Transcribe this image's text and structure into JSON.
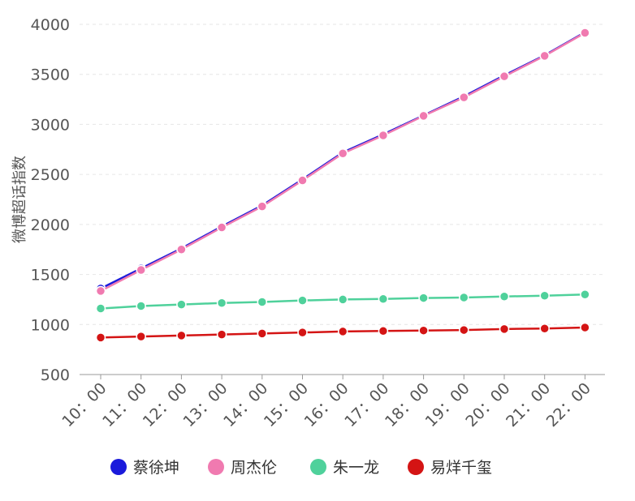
{
  "chart_data": {
    "type": "line",
    "title": "",
    "xlabel": "",
    "ylabel": "微博超话指数",
    "categories": [
      "10：00",
      "11：00",
      "12：00",
      "13：00",
      "14：00",
      "15：00",
      "16：00",
      "17：00",
      "18：00",
      "19：00",
      "20：00",
      "21：00",
      "22：00"
    ],
    "ylim": [
      500,
      4000
    ],
    "yticks": [
      500,
      1000,
      1500,
      2000,
      2500,
      3000,
      3500,
      4000
    ],
    "grid": true,
    "legend_position": "bottom",
    "series": [
      {
        "name": "蔡徐坤",
        "color": "#1a1adb",
        "values": [
          1360,
          1560,
          1760,
          1980,
          2190,
          2450,
          2720,
          2900,
          3090,
          3280,
          3490,
          3690,
          3920
        ]
      },
      {
        "name": "周杰伦",
        "color": "#f07ab0",
        "values": [
          1335,
          1545,
          1750,
          1970,
          2180,
          2440,
          2710,
          2890,
          3085,
          3270,
          3480,
          3685,
          3915
        ]
      },
      {
        "name": "朱一龙",
        "color": "#4fd19b",
        "values": [
          1160,
          1185,
          1200,
          1215,
          1225,
          1240,
          1250,
          1255,
          1265,
          1270,
          1280,
          1288,
          1300
        ]
      },
      {
        "name": "易烊千玺",
        "color": "#d41414",
        "values": [
          870,
          880,
          890,
          900,
          910,
          920,
          930,
          935,
          940,
          945,
          955,
          960,
          970
        ]
      }
    ]
  }
}
